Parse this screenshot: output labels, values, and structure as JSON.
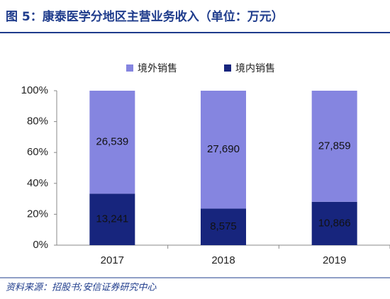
{
  "chart_data": {
    "type": "bar",
    "stacked": "percent",
    "title": "图 5：康泰医学分地区主营业务收入（单位：万元）",
    "source": "资料来源：招股书;安信证券研究中心",
    "categories": [
      "2017",
      "2018",
      "2019"
    ],
    "series": [
      {
        "name": "境外销售",
        "color": "#8585e0",
        "values": [
          26539,
          27690,
          27859
        ],
        "value_labels": [
          "26,539",
          "27,690",
          "27,859"
        ]
      },
      {
        "name": "境内销售",
        "color": "#17257d",
        "values": [
          13241,
          8575,
          10866
        ],
        "value_labels": [
          "13,241",
          "8,575",
          "10,866"
        ]
      }
    ],
    "ylim": [
      0,
      100
    ],
    "yticks": [
      {
        "value": 0,
        "label": "0%"
      },
      {
        "value": 20,
        "label": "20%"
      },
      {
        "value": 40,
        "label": "40%"
      },
      {
        "value": 60,
        "label": "60%"
      },
      {
        "value": 80,
        "label": "80%"
      },
      {
        "value": 100,
        "label": "100%"
      }
    ],
    "grid": false,
    "legend": "top"
  }
}
